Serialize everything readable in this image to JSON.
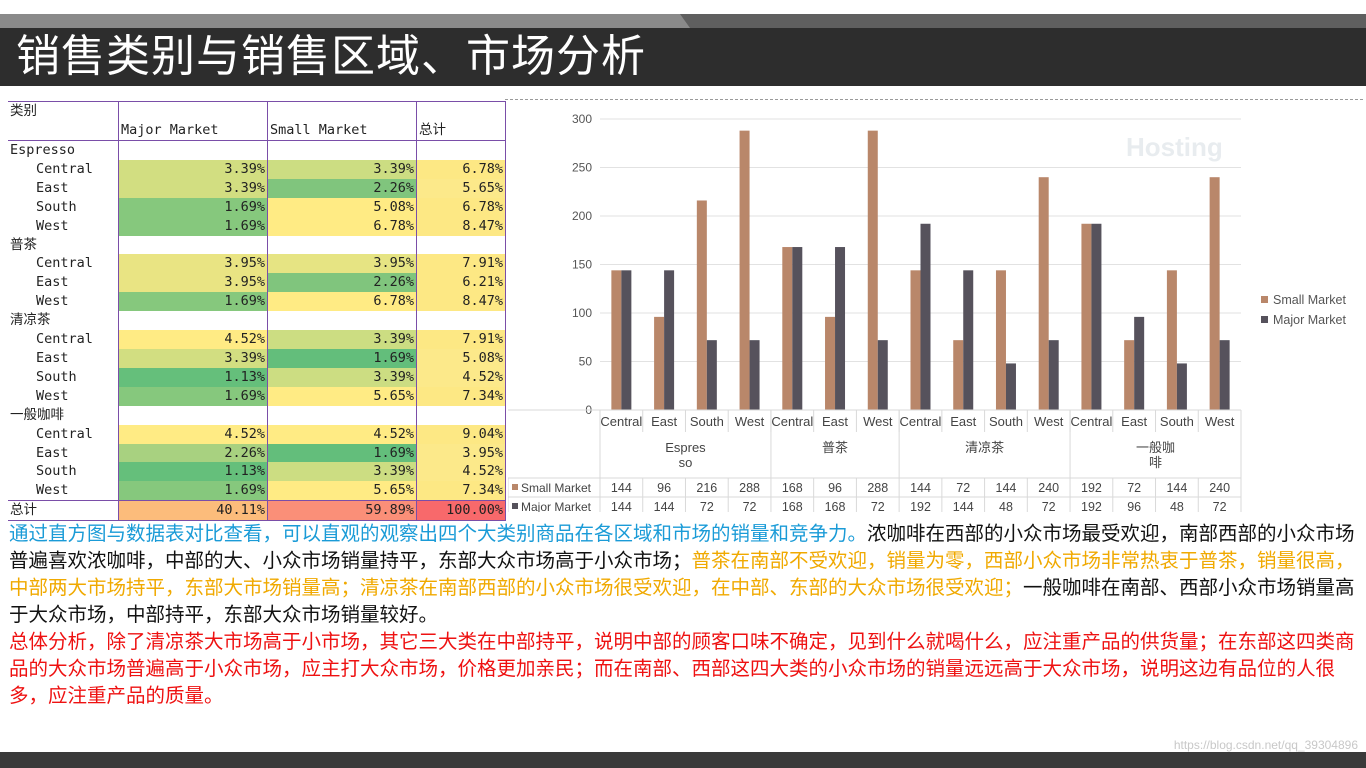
{
  "title": "销售类别与销售区域、市场分析",
  "watermark": "https://blog.csdn.net/qq_39304896",
  "pivot": {
    "headers": [
      "类别",
      "Major Market",
      "Small Market",
      "总计"
    ],
    "groups": [
      {
        "name": "Espresso",
        "rows": [
          {
            "region": "Central",
            "major": "3.39%",
            "small": "3.39%",
            "total": "6.78%"
          },
          {
            "region": "East",
            "major": "3.39%",
            "small": "2.26%",
            "total": "5.65%"
          },
          {
            "region": "South",
            "major": "1.69%",
            "small": "5.08%",
            "total": "6.78%"
          },
          {
            "region": "West",
            "major": "1.69%",
            "small": "6.78%",
            "total": "8.47%"
          }
        ]
      },
      {
        "name": "普茶",
        "rows": [
          {
            "region": "Central",
            "major": "3.95%",
            "small": "3.95%",
            "total": "7.91%"
          },
          {
            "region": "East",
            "major": "3.95%",
            "small": "2.26%",
            "total": "6.21%"
          },
          {
            "region": "West",
            "major": "1.69%",
            "small": "6.78%",
            "total": "8.47%"
          }
        ]
      },
      {
        "name": "清凉茶",
        "rows": [
          {
            "region": "Central",
            "major": "4.52%",
            "small": "3.39%",
            "total": "7.91%"
          },
          {
            "region": "East",
            "major": "3.39%",
            "small": "1.69%",
            "total": "5.08%"
          },
          {
            "region": "South",
            "major": "1.13%",
            "small": "3.39%",
            "total": "4.52%"
          },
          {
            "region": "West",
            "major": "1.69%",
            "small": "5.65%",
            "total": "7.34%"
          }
        ]
      },
      {
        "name": "一般咖啡",
        "rows": [
          {
            "region": "Central",
            "major": "4.52%",
            "small": "4.52%",
            "total": "9.04%"
          },
          {
            "region": "East",
            "major": "2.26%",
            "small": "1.69%",
            "total": "3.95%"
          },
          {
            "region": "South",
            "major": "1.13%",
            "small": "3.39%",
            "total": "4.52%"
          },
          {
            "region": "West",
            "major": "1.69%",
            "small": "5.65%",
            "total": "7.34%"
          }
        ]
      }
    ],
    "total": {
      "label": "总计",
      "major": "40.11%",
      "small": "59.89%",
      "total": "100.00%"
    }
  },
  "chart_data": {
    "type": "bar",
    "title": "",
    "xlabel": "",
    "ylabel": "",
    "ylim": [
      0,
      300
    ],
    "yticks": [
      0,
      50,
      100,
      150,
      200,
      250,
      300
    ],
    "groups": [
      {
        "label": "Espresso",
        "categories": [
          "Central",
          "East",
          "South",
          "West"
        ]
      },
      {
        "label": "普茶",
        "categories": [
          "Central",
          "East",
          "West"
        ]
      },
      {
        "label": "清凉茶",
        "categories": [
          "Central",
          "East",
          "South",
          "West"
        ]
      },
      {
        "label": "一般咖啡",
        "categories": [
          "Central",
          "East",
          "South",
          "West"
        ]
      }
    ],
    "categories": [
      "Central",
      "East",
      "South",
      "West",
      "Central",
      "East",
      "West",
      "Central",
      "East",
      "South",
      "West",
      "Central",
      "East",
      "South",
      "West"
    ],
    "series": [
      {
        "name": "Small Market",
        "color": "#b9876a",
        "values": [
          144,
          96,
          216,
          288,
          168,
          96,
          288,
          144,
          72,
          144,
          240,
          192,
          72,
          144,
          240
        ]
      },
      {
        "name": "Major Market",
        "color": "#56525c",
        "values": [
          144,
          144,
          72,
          72,
          168,
          168,
          72,
          192,
          144,
          48,
          72,
          192,
          96,
          48,
          72
        ]
      }
    ],
    "legend": "right",
    "data_table": true,
    "grid": true
  },
  "paragraphs": [
    {
      "segments": [
        {
          "style": "blue",
          "text": "通过直方图与数据表对比查看，可以直观的观察出四个大类别商品在各区域和市场的销量和竞争力。"
        },
        {
          "style": "black",
          "text": "浓咖啡在西部的小众市场最受欢迎，南部西部的小众市场普遍喜欢浓咖啡，中部的大、小众市场销量持平，东部大众市场高于小众市场；"
        },
        {
          "style": "orange",
          "text": "普茶在南部不受欢迎，销量为零，西部小众市场非常热衷于普茶，销量很高，中部两大市场持平，东部大市场销量高；清凉茶在南部西部的小众市场很受欢迎，在中部、东部的大众市场很受欢迎；"
        },
        {
          "style": "black",
          "text": "一般咖啡在南部、西部小众市场销量高于大众市场，中部持平，东部大众市场销量较好。"
        }
      ]
    },
    {
      "segments": [
        {
          "style": "red",
          "text": "总体分析，除了清凉茶大市场高于小市场，其它三大类在中部持平，说明中部的顾客口味不确定，见到什么就喝什么，应注重产品的供货量；在东部这四类商品的大众市场普遍高于小众市场，应主打大众市场，价格更加亲民；而在南部、西部这四大类的小众市场的销量远远高于大众市场，说明这边有品位的人很多，应注重产品的质量。"
        }
      ]
    }
  ]
}
